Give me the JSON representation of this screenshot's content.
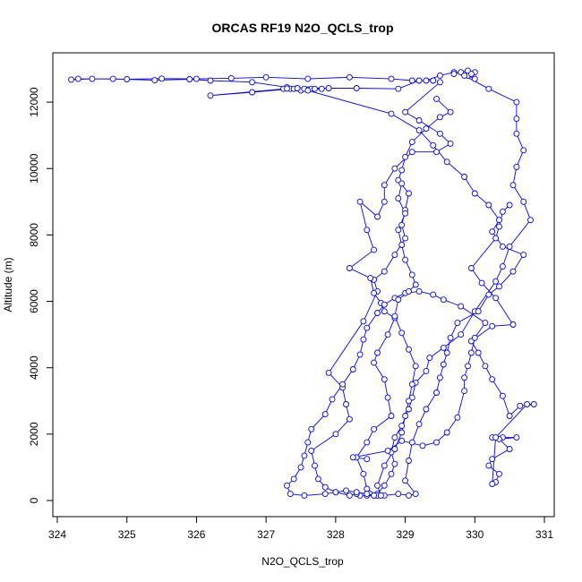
{
  "chart_data": {
    "type": "scatter",
    "title": "ORCAS RF19 N2O_QCLS_trop",
    "xlabel": "N2O_QCLS_trop",
    "ylabel": "Altitude (m)",
    "xlim": [
      324,
      331
    ],
    "ylim": [
      0,
      13000
    ],
    "x_ticks": [
      "324",
      "325",
      "326",
      "327",
      "328",
      "329",
      "330",
      "331"
    ],
    "y_ticks": [
      "0",
      "2000",
      "4000",
      "6000",
      "8000",
      "10000",
      "12000"
    ],
    "series_color": "#0000ff",
    "marker": "open-circle",
    "connected": true,
    "grid": false,
    "series": [
      {
        "points": [
          [
            330.0,
            12700
          ],
          [
            329.9,
            12800
          ],
          [
            329.7,
            12900
          ],
          [
            329.5,
            12800
          ],
          [
            329.3,
            12650
          ],
          [
            329.1,
            12650
          ],
          [
            328.8,
            12700
          ],
          [
            328.2,
            12750
          ],
          [
            327.6,
            12700
          ],
          [
            327.0,
            12750
          ],
          [
            326.5,
            12720
          ],
          [
            326.0,
            12700
          ],
          [
            325.5,
            12710
          ],
          [
            325.0,
            12690
          ],
          [
            324.5,
            12700
          ],
          [
            324.2,
            12680
          ],
          [
            324.3,
            12700
          ],
          [
            324.8,
            12700
          ],
          [
            325.4,
            12660
          ],
          [
            325.9,
            12690
          ],
          [
            326.2,
            12650
          ],
          [
            326.8,
            12600
          ],
          [
            327.3,
            12450
          ],
          [
            327.8,
            12400
          ],
          [
            327.5,
            12350
          ],
          [
            327.35,
            12400
          ],
          [
            327.25,
            12400
          ],
          [
            327.4,
            12400
          ],
          [
            327.6,
            12380
          ],
          [
            327.65,
            12400
          ],
          [
            327.55,
            12400
          ],
          [
            327.7,
            12400
          ],
          [
            327.3,
            12410
          ],
          [
            326.2,
            12200
          ],
          [
            326.8,
            12300
          ],
          [
            327.45,
            12420
          ],
          [
            327.9,
            12420
          ],
          [
            328.3,
            12420
          ],
          [
            328.9,
            12400
          ],
          [
            329.2,
            12650
          ],
          [
            329.4,
            12650
          ]
        ]
      },
      {
        "points": [
          [
            329.7,
            12850
          ],
          [
            329.8,
            12900
          ],
          [
            329.9,
            12950
          ],
          [
            330.0,
            12900
          ],
          [
            329.95,
            12850
          ],
          [
            329.85,
            12800
          ],
          [
            330.2,
            12400
          ],
          [
            330.6,
            12000
          ],
          [
            330.6,
            11500
          ],
          [
            330.6,
            11050
          ],
          [
            330.7,
            10550
          ],
          [
            330.6,
            10050
          ],
          [
            330.55,
            9500
          ],
          [
            330.7,
            9000
          ],
          [
            330.8,
            8450
          ],
          [
            330.5,
            7650
          ],
          [
            330.4,
            7050
          ],
          [
            330.3,
            6600
          ],
          [
            330.0,
            5700
          ],
          [
            329.8,
            5000
          ],
          [
            329.55,
            4600
          ],
          [
            329.35,
            4300
          ],
          [
            329.3,
            3900
          ],
          [
            329.15,
            3550
          ],
          [
            329.1,
            3100
          ],
          [
            329.05,
            2750
          ],
          [
            328.95,
            2250
          ],
          [
            328.85,
            1900
          ],
          [
            328.8,
            1450
          ],
          [
            328.85,
            1100
          ],
          [
            328.8,
            800
          ],
          [
            328.7,
            450
          ],
          [
            328.6,
            200
          ],
          [
            328.55,
            150
          ],
          [
            328.45,
            150
          ],
          [
            328.35,
            150
          ],
          [
            328.3,
            200
          ],
          [
            328.2,
            150
          ],
          [
            328.0,
            250
          ],
          [
            327.85,
            400
          ],
          [
            327.75,
            650
          ],
          [
            327.7,
            1050
          ],
          [
            327.65,
            1500
          ],
          [
            328.0,
            2000
          ],
          [
            328.2,
            2450
          ],
          [
            328.15,
            2900
          ],
          [
            328.1,
            3400
          ],
          [
            327.9,
            3850
          ],
          [
            328.4,
            5400
          ],
          [
            328.6,
            6300
          ],
          [
            328.55,
            6650
          ],
          [
            328.7,
            6900
          ],
          [
            328.85,
            7400
          ],
          [
            329.0,
            7900
          ],
          [
            328.95,
            8300
          ],
          [
            329.0,
            8750
          ],
          [
            329.05,
            9250
          ],
          [
            328.9,
            9650
          ],
          [
            328.95,
            9950
          ],
          [
            329.0,
            10350
          ],
          [
            329.1,
            10800
          ],
          [
            329.3,
            11200
          ],
          [
            329.5,
            11550
          ],
          [
            329.65,
            11700
          ],
          [
            329.45,
            12100
          ]
        ]
      },
      {
        "points": [
          [
            329.5,
            12600
          ],
          [
            329.0,
            11700
          ],
          [
            329.2,
            11450
          ],
          [
            329.5,
            11050
          ],
          [
            329.65,
            10750
          ],
          [
            329.45,
            10500
          ],
          [
            329.1,
            10500
          ],
          [
            328.85,
            10000
          ],
          [
            328.7,
            9500
          ],
          [
            328.7,
            9000
          ],
          [
            328.6,
            8550
          ],
          [
            328.35,
            9000
          ],
          [
            328.45,
            8150
          ],
          [
            328.55,
            7550
          ],
          [
            328.2,
            7000
          ],
          [
            328.5,
            6700
          ],
          [
            328.55,
            6250
          ],
          [
            328.65,
            5950
          ],
          [
            328.7,
            5700
          ],
          [
            328.85,
            5500
          ],
          [
            328.75,
            5000
          ],
          [
            328.6,
            4450
          ],
          [
            328.55,
            4150
          ],
          [
            328.7,
            3650
          ],
          [
            328.75,
            3100
          ],
          [
            328.8,
            2550
          ],
          [
            328.55,
            2150
          ],
          [
            328.45,
            1750
          ],
          [
            328.3,
            1300
          ],
          [
            328.4,
            800
          ],
          [
            328.45,
            350
          ],
          [
            328.6,
            150
          ],
          [
            328.7,
            150
          ],
          [
            328.9,
            200
          ],
          [
            329.05,
            150
          ],
          [
            329.15,
            200
          ],
          [
            329.0,
            600
          ],
          [
            329.05,
            1200
          ],
          [
            329.1,
            1750
          ],
          [
            329.2,
            2300
          ],
          [
            329.3,
            2750
          ],
          [
            329.45,
            3250
          ],
          [
            329.5,
            3700
          ],
          [
            329.55,
            4100
          ],
          [
            329.6,
            4450
          ],
          [
            329.65,
            4900
          ],
          [
            329.75,
            5350
          ],
          [
            330.05,
            5700
          ],
          [
            330.2,
            6200
          ],
          [
            330.35,
            6450
          ],
          [
            330.55,
            6900
          ],
          [
            330.7,
            7400
          ],
          [
            330.4,
            7650
          ],
          [
            330.25,
            8100
          ],
          [
            330.35,
            8450
          ],
          [
            330.2,
            8900
          ],
          [
            330.0,
            9250
          ],
          [
            329.85,
            9750
          ],
          [
            329.6,
            10200
          ],
          [
            329.4,
            10700
          ],
          [
            329.2,
            11150
          ],
          [
            328.8,
            11650
          ],
          [
            327.6,
            12350
          ]
        ]
      },
      {
        "points": [
          [
            330.25,
            1900
          ],
          [
            330.4,
            1900
          ],
          [
            330.6,
            1900
          ],
          [
            330.35,
            1850
          ],
          [
            330.5,
            1550
          ],
          [
            330.25,
            1250
          ],
          [
            330.2,
            1050
          ],
          [
            330.35,
            800
          ],
          [
            330.3,
            550
          ],
          [
            330.25,
            500
          ],
          [
            330.3,
            1900
          ],
          [
            330.75,
            2900
          ],
          [
            330.85,
            2900
          ],
          [
            330.65,
            2850
          ],
          [
            330.5,
            2550
          ],
          [
            330.4,
            3150
          ],
          [
            330.25,
            3650
          ],
          [
            330.15,
            4050
          ],
          [
            330.05,
            4450
          ],
          [
            329.95,
            4800
          ],
          [
            330.25,
            5250
          ],
          [
            330.55,
            5300
          ],
          [
            330.3,
            6100
          ],
          [
            330.1,
            6550
          ],
          [
            329.95,
            7000
          ],
          [
            330.3,
            7900
          ],
          [
            330.35,
            8250
          ],
          [
            330.4,
            8700
          ],
          [
            330.5,
            8900
          ]
        ]
      },
      {
        "points": [
          [
            328.45,
            1250
          ],
          [
            328.25,
            1300
          ],
          [
            328.75,
            1500
          ],
          [
            328.95,
            1800
          ],
          [
            329.25,
            1650
          ],
          [
            329.45,
            1750
          ],
          [
            329.6,
            2050
          ],
          [
            329.75,
            2500
          ],
          [
            329.85,
            3300
          ],
          [
            329.85,
            3700
          ],
          [
            329.9,
            4050
          ],
          [
            329.95,
            4450
          ],
          [
            330.0,
            4900
          ],
          [
            330.15,
            5350
          ],
          [
            329.8,
            5850
          ],
          [
            329.55,
            6050
          ],
          [
            329.4,
            6200
          ],
          [
            329.2,
            6300
          ],
          [
            329.0,
            6250
          ],
          [
            328.85,
            6100
          ],
          [
            328.7,
            5900
          ],
          [
            328.6,
            5650
          ],
          [
            328.45,
            5200
          ],
          [
            328.4,
            4850
          ],
          [
            328.35,
            4400
          ],
          [
            328.25,
            3950
          ],
          [
            328.1,
            3500
          ],
          [
            327.95,
            3050
          ],
          [
            327.85,
            2600
          ],
          [
            327.65,
            2150
          ],
          [
            327.6,
            1750
          ],
          [
            327.55,
            1350
          ],
          [
            327.5,
            1000
          ],
          [
            327.4,
            650
          ],
          [
            327.3,
            450
          ],
          [
            327.35,
            200
          ],
          [
            327.55,
            150
          ],
          [
            327.85,
            200
          ],
          [
            328.0,
            250
          ],
          [
            328.15,
            300
          ],
          [
            328.3,
            250
          ],
          [
            328.45,
            200
          ],
          [
            328.55,
            150
          ],
          [
            328.65,
            150
          ],
          [
            328.6,
            450
          ],
          [
            328.7,
            1050
          ],
          [
            328.85,
            1550
          ],
          [
            328.95,
            2050
          ],
          [
            329.0,
            2550
          ],
          [
            329.05,
            3000
          ],
          [
            329.1,
            3500
          ],
          [
            329.15,
            4050
          ],
          [
            329.05,
            4550
          ],
          [
            328.95,
            5050
          ],
          [
            328.85,
            5550
          ],
          [
            328.9,
            6050
          ],
          [
            329.05,
            6300
          ],
          [
            329.15,
            6500
          ],
          [
            329.1,
            6800
          ],
          [
            329.0,
            7250
          ],
          [
            328.95,
            7700
          ],
          [
            328.9,
            8150
          ],
          [
            329.0,
            8650
          ],
          [
            328.9,
            9100
          ],
          [
            328.95,
            9550
          ]
        ]
      }
    ]
  }
}
